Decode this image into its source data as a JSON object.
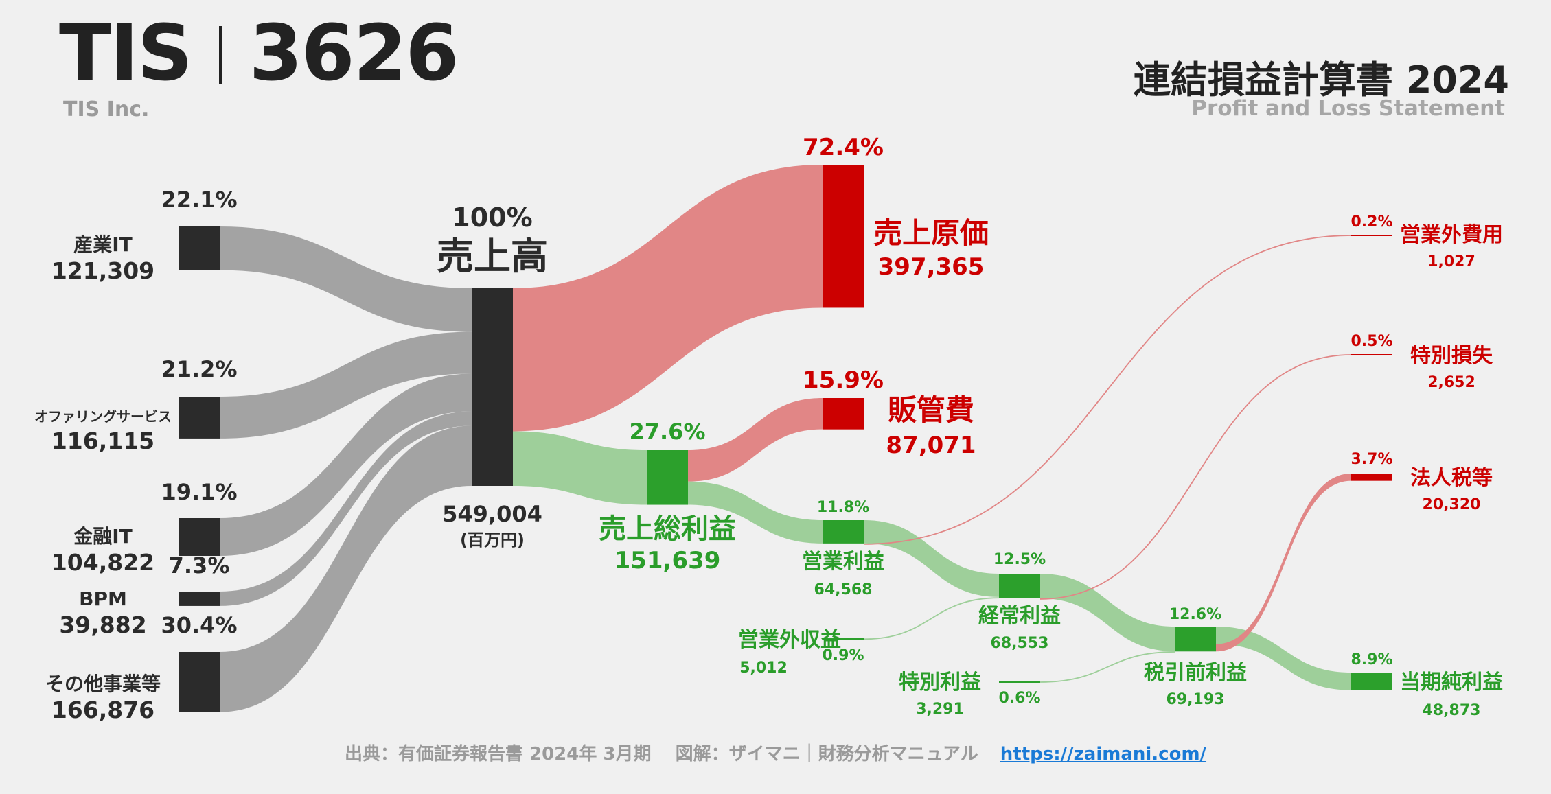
{
  "header": {
    "ticker_name": "TIS",
    "ticker_code": "3626",
    "company": "TIS Inc.",
    "title": "連結損益計算書 2024",
    "subtitle": "Profit and Loss Statement"
  },
  "footer": {
    "source": "出典：有価証券報告書 2024年 3月期　 図解：ザイマニ｜財務分析マニュアル",
    "url": "https://zaimani.com/"
  },
  "colors": {
    "dark": "#2b2b2b",
    "gray_flow": "#a3a3a3",
    "red": "#cc0000",
    "red_flow": "#e18686",
    "green": "#2ca02c",
    "green_flow": "#9ecf9a",
    "green_text": "#2a9d2a",
    "red_text": "#cc0000"
  },
  "chart_data": {
    "type": "sankey",
    "unit": "(百万円)",
    "nodes": [
      {
        "id": "ind",
        "label": "産業IT",
        "value": 121309,
        "value_label": "121,309",
        "pct": "22.1%"
      },
      {
        "id": "off",
        "label": "オファリングサービス",
        "value": 116115,
        "value_label": "116,115",
        "pct": "21.2%"
      },
      {
        "id": "fin",
        "label": "金融IT",
        "value": 104822,
        "value_label": "104,822",
        "pct": "19.1%"
      },
      {
        "id": "bpm",
        "label": "BPM",
        "value": 39882,
        "value_label": "39,882",
        "pct": "7.3%"
      },
      {
        "id": "oth",
        "label": "その他事業等",
        "value": 166876,
        "value_label": "166,876",
        "pct": "30.4%"
      },
      {
        "id": "rev",
        "label": "売上高",
        "value": 549004,
        "value_label": "549,004",
        "pct": "100%"
      },
      {
        "id": "cogs",
        "label": "売上原価",
        "value": 397365,
        "value_label": "397,365",
        "pct": "72.4%"
      },
      {
        "id": "gp",
        "label": "売上総利益",
        "value": 151639,
        "value_label": "151,639",
        "pct": "27.6%"
      },
      {
        "id": "sga",
        "label": "販管費",
        "value": 87071,
        "value_label": "87,071",
        "pct": "15.9%"
      },
      {
        "id": "op",
        "label": "営業利益",
        "value": 64568,
        "value_label": "64,568",
        "pct": "11.8%"
      },
      {
        "id": "noi",
        "label": "営業外収益",
        "value": 5012,
        "value_label": "5,012",
        "pct": "0.9%"
      },
      {
        "id": "noe",
        "label": "営業外費用",
        "value": 1027,
        "value_label": "1,027",
        "pct": "0.2%"
      },
      {
        "id": "ord",
        "label": "経常利益",
        "value": 68553,
        "value_label": "68,553",
        "pct": "12.5%"
      },
      {
        "id": "exg",
        "label": "特別利益",
        "value": 3291,
        "value_label": "3,291",
        "pct": "0.6%"
      },
      {
        "id": "exl",
        "label": "特別損失",
        "value": 2652,
        "value_label": "2,652",
        "pct": "0.5%"
      },
      {
        "id": "pti",
        "label": "税引前利益",
        "value": 69193,
        "value_label": "69,193",
        "pct": "12.6%"
      },
      {
        "id": "tax",
        "label": "法人税等",
        "value": 20320,
        "value_label": "20,320",
        "pct": "3.7%"
      },
      {
        "id": "ni",
        "label": "当期純利益",
        "value": 48873,
        "value_label": "48,873",
        "pct": "8.9%"
      }
    ],
    "links": [
      {
        "source": "ind",
        "target": "rev",
        "value": 121309
      },
      {
        "source": "off",
        "target": "rev",
        "value": 116115
      },
      {
        "source": "fin",
        "target": "rev",
        "value": 104822
      },
      {
        "source": "bpm",
        "target": "rev",
        "value": 39882
      },
      {
        "source": "oth",
        "target": "rev",
        "value": 166876
      },
      {
        "source": "rev",
        "target": "cogs",
        "value": 397365
      },
      {
        "source": "rev",
        "target": "gp",
        "value": 151639
      },
      {
        "source": "gp",
        "target": "sga",
        "value": 87071
      },
      {
        "source": "gp",
        "target": "op",
        "value": 64568
      },
      {
        "source": "op",
        "target": "ord",
        "value": 64568
      },
      {
        "source": "op",
        "target": "noe",
        "value": 1027
      },
      {
        "source": "noi",
        "target": "ord",
        "value": 5012
      },
      {
        "source": "ord",
        "target": "pti",
        "value": 68553
      },
      {
        "source": "ord",
        "target": "exl",
        "value": 2652
      },
      {
        "source": "exg",
        "target": "pti",
        "value": 3291
      },
      {
        "source": "pti",
        "target": "ni",
        "value": 48873
      },
      {
        "source": "pti",
        "target": "tax",
        "value": 20320
      }
    ]
  }
}
